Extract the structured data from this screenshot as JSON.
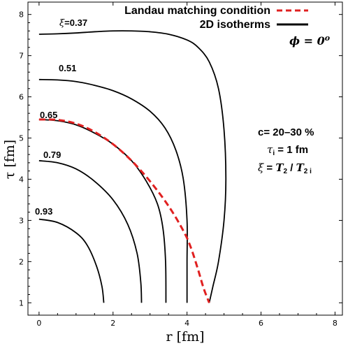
{
  "chart_data": {
    "type": "line",
    "xlabel": "r [fm]",
    "ylabel": "τ [fm]",
    "xlim": [
      -0.3,
      8.2
    ],
    "ylim": [
      0.7,
      8.3
    ],
    "xticks": [
      "0",
      "2",
      "4",
      "6",
      "8"
    ],
    "yticks": [
      "1",
      "2",
      "3",
      "4",
      "5",
      "6",
      "7",
      "8"
    ],
    "grid": false,
    "legend": {
      "placement": "top-right",
      "entries": [
        {
          "label": "Landau matching condition",
          "style": "dashed",
          "color": "#e02020"
        },
        {
          "label": "2D isotherms",
          "style": "solid",
          "color": "#000000"
        }
      ],
      "note": "ϕ = 0°"
    },
    "annotations": {
      "centrality": "c= 20–30 %",
      "tau_i": "τi = 1 fm",
      "xi_def": "ξ = T2 / T2 i"
    },
    "series": [
      {
        "label": "ξ=0.37",
        "color": "#000000",
        "points": [
          [
            0,
            7.52
          ],
          [
            0.5,
            7.53
          ],
          [
            1.0,
            7.55
          ],
          [
            1.5,
            7.58
          ],
          [
            2.0,
            7.6
          ],
          [
            2.5,
            7.6
          ],
          [
            3.0,
            7.58
          ],
          [
            3.5,
            7.52
          ],
          [
            4.0,
            7.38
          ],
          [
            4.3,
            7.2
          ],
          [
            4.6,
            6.85
          ],
          [
            4.85,
            6.2
          ],
          [
            5.0,
            5.2
          ],
          [
            5.05,
            4.0
          ],
          [
            5.0,
            3.0
          ],
          [
            4.85,
            2.0
          ],
          [
            4.7,
            1.4
          ],
          [
            4.6,
            1.0
          ]
        ]
      },
      {
        "label": "0.51",
        "color": "#000000",
        "points": [
          [
            0,
            6.42
          ],
          [
            0.5,
            6.41
          ],
          [
            1.0,
            6.37
          ],
          [
            1.5,
            6.28
          ],
          [
            2.0,
            6.15
          ],
          [
            2.5,
            5.95
          ],
          [
            3.0,
            5.65
          ],
          [
            3.4,
            5.25
          ],
          [
            3.7,
            4.7
          ],
          [
            3.9,
            4.0
          ],
          [
            4.0,
            3.0
          ],
          [
            4.0,
            2.0
          ],
          [
            4.0,
            1.0
          ]
        ]
      },
      {
        "label": "0.65",
        "color": "#000000",
        "points": [
          [
            0,
            5.45
          ],
          [
            0.5,
            5.42
          ],
          [
            1.0,
            5.32
          ],
          [
            1.5,
            5.12
          ],
          [
            2.0,
            4.85
          ],
          [
            2.5,
            4.45
          ],
          [
            2.9,
            3.95
          ],
          [
            3.2,
            3.4
          ],
          [
            3.35,
            2.8
          ],
          [
            3.42,
            2.0
          ],
          [
            3.43,
            1.0
          ]
        ]
      },
      {
        "label": "0.79",
        "color": "#000000",
        "points": [
          [
            0,
            4.45
          ],
          [
            0.5,
            4.4
          ],
          [
            1.0,
            4.25
          ],
          [
            1.5,
            3.95
          ],
          [
            2.0,
            3.5
          ],
          [
            2.4,
            2.9
          ],
          [
            2.65,
            2.2
          ],
          [
            2.75,
            1.5
          ],
          [
            2.77,
            1.0
          ]
        ]
      },
      {
        "label": "0.93",
        "color": "#000000",
        "points": [
          [
            0,
            3.03
          ],
          [
            0.5,
            2.95
          ],
          [
            1.0,
            2.7
          ],
          [
            1.3,
            2.4
          ],
          [
            1.55,
            1.9
          ],
          [
            1.7,
            1.4
          ],
          [
            1.75,
            1.0
          ]
        ]
      },
      {
        "label": "Landau matching condition",
        "color": "#e02020",
        "dashed": true,
        "points": [
          [
            0,
            5.45
          ],
          [
            0.5,
            5.44
          ],
          [
            1.0,
            5.35
          ],
          [
            1.5,
            5.15
          ],
          [
            2.0,
            4.85
          ],
          [
            2.5,
            4.45
          ],
          [
            3.0,
            3.95
          ],
          [
            3.5,
            3.35
          ],
          [
            3.9,
            2.75
          ],
          [
            4.1,
            2.35
          ],
          [
            4.3,
            1.8
          ],
          [
            4.45,
            1.35
          ],
          [
            4.6,
            1.0
          ]
        ]
      }
    ]
  }
}
